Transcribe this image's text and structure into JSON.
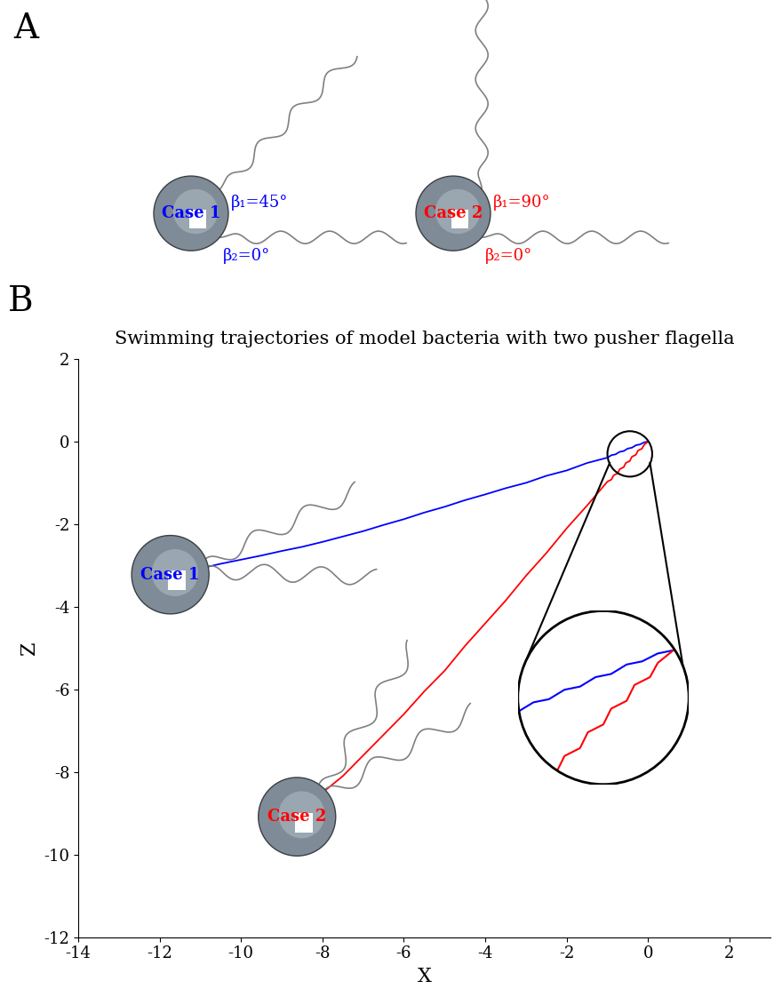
{
  "panel_a": {
    "label": "A",
    "cells": [
      {
        "name": "Case 1",
        "color": "#0000ff",
        "beta1": 45,
        "beta1_label": "β₁=45°",
        "beta2": 0,
        "beta2_label": "β₂=0°"
      },
      {
        "name": "Case 2",
        "color": "#ff0000",
        "beta1": 90,
        "beta1_label": "β₁=90°",
        "beta2": 0,
        "beta2_label": "β₂=0°"
      }
    ]
  },
  "chart_data": {
    "type": "line",
    "panel_label": "B",
    "title": "Swimming trajectories of model bacteria with two pusher flagella",
    "x_label": "X",
    "y_label": "Z",
    "xlim": [
      -14,
      3
    ],
    "ylim": [
      -12,
      2
    ],
    "xticks": [
      -14,
      -12,
      -10,
      -8,
      -6,
      -4,
      -2,
      0,
      2
    ],
    "yticks": [
      -12,
      -10,
      -8,
      -6,
      -4,
      -2,
      0,
      2
    ],
    "grid": false,
    "series": [
      {
        "name": "Case 1",
        "color": "#0000ff",
        "x": [
          0,
          -0.1,
          -0.2,
          -0.3,
          -0.4,
          -0.5,
          -0.6,
          -0.7,
          -0.8,
          -0.9,
          -1.0,
          -1.5,
          -2.0,
          -2.5,
          -3.0,
          -3.5,
          -4.0,
          -4.5,
          -5.0,
          -5.5,
          -6.0,
          -6.5,
          -7.0,
          -7.5,
          -8.0,
          -8.5,
          -9.0,
          -9.5,
          -10.0,
          -10.5,
          -10.9
        ],
        "values": [
          0,
          -0.02,
          -0.07,
          -0.09,
          -0.15,
          -0.17,
          -0.23,
          -0.25,
          -0.31,
          -0.33,
          -0.39,
          -0.52,
          -0.7,
          -0.83,
          -1.0,
          -1.13,
          -1.28,
          -1.42,
          -1.58,
          -1.72,
          -1.88,
          -2.02,
          -2.17,
          -2.3,
          -2.43,
          -2.55,
          -2.65,
          -2.76,
          -2.86,
          -2.96,
          -3.05
        ]
      },
      {
        "name": "Case 2",
        "color": "#ff0000",
        "x": [
          0,
          -0.1,
          -0.15,
          -0.25,
          -0.3,
          -0.4,
          -0.45,
          -0.55,
          -0.6,
          -0.7,
          -0.75,
          -0.85,
          -0.9,
          -1.0,
          -1.5,
          -2.0,
          -2.5,
          -3.0,
          -3.5,
          -4.0,
          -4.5,
          -5.0,
          -5.5,
          -6.0,
          -6.5,
          -7.0,
          -7.5,
          -8.0
        ],
        "values": [
          0,
          -0.08,
          -0.17,
          -0.22,
          -0.32,
          -0.37,
          -0.47,
          -0.52,
          -0.62,
          -0.67,
          -0.77,
          -0.82,
          -0.92,
          -0.97,
          -1.55,
          -2.1,
          -2.7,
          -3.25,
          -3.85,
          -4.4,
          -4.95,
          -5.55,
          -6.05,
          -6.6,
          -7.1,
          -7.6,
          -8.1,
          -8.5
        ]
      }
    ]
  }
}
